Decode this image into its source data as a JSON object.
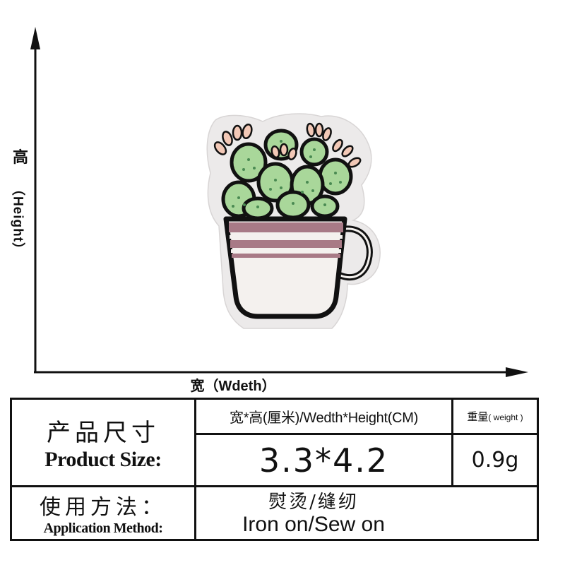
{
  "diagram": {
    "height_label_cn": "高",
    "height_label_en": "（Height）",
    "width_label": "宽（Wdeth）",
    "product_image": "embroidered-patch-cactus-in-teacup"
  },
  "spec_table": {
    "product_size_label_cn": "产品尺寸",
    "product_size_label_en": "Product Size:",
    "size_header": "宽*高(厘米)/Wedth*Height(CM)",
    "size_value": "3.3*4.2",
    "weight_header_cn": "重量",
    "weight_header_en": "( weight )",
    "weight_value": "0.9g",
    "method_label_cn": "使用方法：",
    "method_label_en": "Application Method:",
    "method_value_cn": "熨烫/缝纫",
    "method_value_en": "Iron on/Sew on"
  },
  "colors": {
    "line": "#111111",
    "cactus_green": "#a9d79a",
    "cup_stripe": "#a87a86",
    "cup_white": "#f4f1ee",
    "flower_pink": "#f2c8b6",
    "felt_backing": "#eceaea"
  }
}
